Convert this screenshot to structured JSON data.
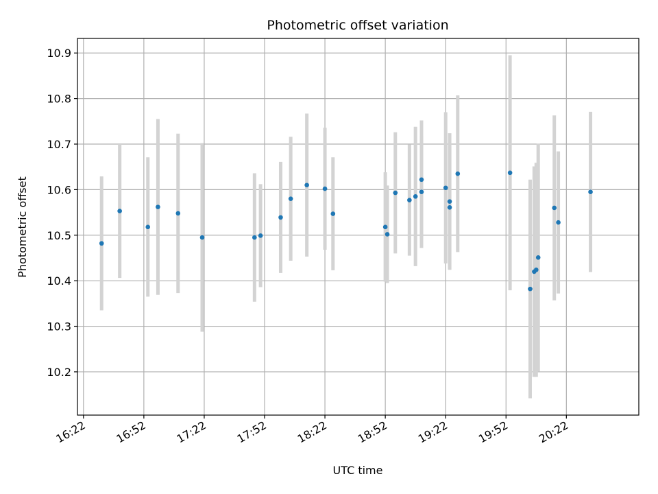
{
  "chart_data": {
    "type": "scatter",
    "title": "Photometric offset variation",
    "xlabel": "UTC time",
    "ylabel": "Photometric offset",
    "x_ticks": [
      "16:22",
      "16:52",
      "17:22",
      "17:52",
      "18:22",
      "18:52",
      "19:22",
      "19:52",
      "20:22"
    ],
    "y_ticks": [
      "10.2",
      "10.3",
      "10.4",
      "10.5",
      "10.6",
      "10.7",
      "10.8",
      "10.9"
    ],
    "xlim": [
      "16:19",
      "20:58"
    ],
    "ylim": [
      10.105,
      10.932
    ],
    "grid": true,
    "colors": {
      "marker": "#1f77b4",
      "errorbar": "#d3d3d3",
      "grid": "#b0b0b0"
    },
    "series": [
      {
        "points": [
          {
            "x": "16:31",
            "y": 10.482,
            "err": 0.147
          },
          {
            "x": "16:40",
            "y": 10.553,
            "err": 0.147
          },
          {
            "x": "16:54",
            "y": 10.518,
            "err": 0.153
          },
          {
            "x": "16:59",
            "y": 10.562,
            "err": 0.193
          },
          {
            "x": "17:09",
            "y": 10.548,
            "err": 0.175
          },
          {
            "x": "17:21",
            "y": 10.495,
            "err": 0.207
          },
          {
            "x": "17:47",
            "y": 10.495,
            "err": 0.141
          },
          {
            "x": "17:50",
            "y": 10.499,
            "err": 0.113
          },
          {
            "x": "18:00",
            "y": 10.539,
            "err": 0.122
          },
          {
            "x": "18:05",
            "y": 10.58,
            "err": 0.136
          },
          {
            "x": "18:13",
            "y": 10.61,
            "err": 0.157
          },
          {
            "x": "18:22",
            "y": 10.602,
            "err": 0.134
          },
          {
            "x": "18:26",
            "y": 10.547,
            "err": 0.124
          },
          {
            "x": "18:52",
            "y": 10.518,
            "err": 0.12
          },
          {
            "x": "18:53",
            "y": 10.502,
            "err": 0.107
          },
          {
            "x": "18:57",
            "y": 10.593,
            "err": 0.133
          },
          {
            "x": "19:04",
            "y": 10.577,
            "err": 0.122
          },
          {
            "x": "19:07",
            "y": 10.585,
            "err": 0.153
          },
          {
            "x": "19:10",
            "y": 10.622,
            "err": 0.13
          },
          {
            "x": "19:10",
            "y": 10.595,
            "err": 0.123
          },
          {
            "x": "19:22",
            "y": 10.604,
            "err": 0.166
          },
          {
            "x": "19:24",
            "y": 10.574,
            "err": 0.15
          },
          {
            "x": "19:24",
            "y": 10.561,
            "err": 0.136
          },
          {
            "x": "19:28",
            "y": 10.635,
            "err": 0.172
          },
          {
            "x": "19:54",
            "y": 10.637,
            "err": 0.258
          },
          {
            "x": "20:04",
            "y": 10.382,
            "err": 0.24
          },
          {
            "x": "20:06",
            "y": 10.42,
            "err": 0.231
          },
          {
            "x": "20:07",
            "y": 10.424,
            "err": 0.235
          },
          {
            "x": "20:08",
            "y": 10.451,
            "err": 0.25
          },
          {
            "x": "20:16",
            "y": 10.56,
            "err": 0.203
          },
          {
            "x": "20:18",
            "y": 10.528,
            "err": 0.156
          },
          {
            "x": "20:34",
            "y": 10.595,
            "err": 0.176
          }
        ]
      }
    ]
  }
}
